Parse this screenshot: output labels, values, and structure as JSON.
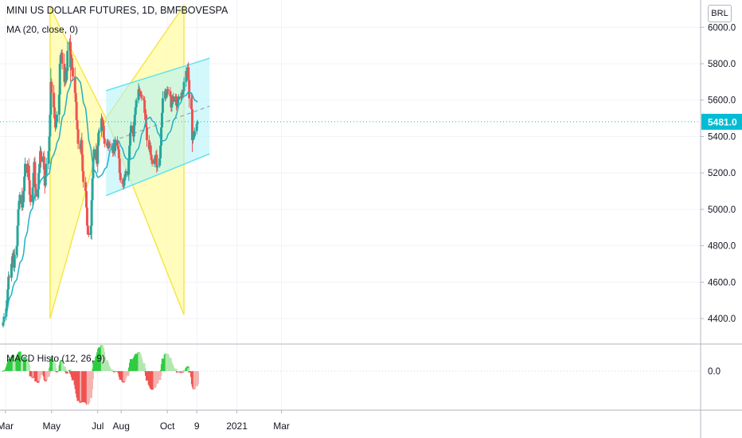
{
  "header": {
    "symbol": "MINI US DOLLAR FUTURES, 1D, BMFBOVESPA",
    "ma_label": "MA (20, close, 0)",
    "macd_label": "MACD Histo (12, 26, 9)",
    "currency": "BRL"
  },
  "colors": {
    "up": "#26a69a",
    "down": "#ef5350",
    "ma": "#21b0c4",
    "triangle_fill": "#fffbb0",
    "triangle_line": "#f5e33a",
    "channel_fill": "#aef3f7",
    "channel_line": "#5fe3ec",
    "hist_up_strong": "#2ecc40",
    "hist_up_weak": "#b2e8b0",
    "hist_down_strong": "#ef5350",
    "hist_down_weak": "#f4b3b1",
    "last_price_bg": "#00bcd4"
  },
  "chart_data": [
    {
      "type": "candlestick",
      "title": "MINI US DOLLAR FUTURES, 1D, BMFBOVESPA",
      "ylabel": "BRL",
      "ylim": [
        4260,
        6150
      ],
      "y_ticks": [
        4400,
        4600,
        4800,
        5000,
        5200,
        5400,
        5600,
        5800,
        6000
      ],
      "y_tick_labels": [
        "4400.0",
        "4600.0",
        "4800.0",
        "5000.0",
        "5200.0",
        "5400.0",
        "5600.0",
        "5800.0",
        "6000.0"
      ],
      "x_labels": [
        "Mar",
        "May",
        "Jul",
        "Aug",
        "Oct",
        "9",
        "2021",
        "Mar"
      ],
      "last_price": 5481.0,
      "last_price_label": "5481.0",
      "x_start": "2020-02-27",
      "close": [
        4380,
        4410,
        4455,
        4500,
        4560,
        4630,
        4625,
        4700,
        4730,
        4760,
        4680,
        4750,
        4800,
        4910,
        5000,
        5030,
        5080,
        5010,
        5040,
        5100,
        5180,
        5250,
        5200,
        5240,
        5160,
        5080,
        5040,
        5120,
        5200,
        5260,
        5140,
        5070,
        5110,
        5200,
        5250,
        5320,
        5260,
        5290,
        5220,
        5130,
        5180,
        5250,
        5320,
        5400,
        5520,
        5700,
        5640,
        5560,
        5500,
        5450,
        5480,
        5520,
        5630,
        5800,
        5830,
        5860,
        5800,
        5700,
        5760,
        5710,
        5760,
        5870,
        5920,
        5780,
        5830,
        5780,
        5730,
        5640,
        5590,
        5490,
        5440,
        5360,
        5330,
        5380,
        5300,
        5210,
        5150,
        5100,
        5010,
        4910,
        4870,
        4860,
        4910,
        5050,
        5170,
        5280,
        5330,
        5270,
        5250,
        5350,
        5420,
        5430,
        5500,
        5480,
        5460,
        5390,
        5360,
        5350,
        5370,
        5340,
        5360,
        5350,
        5340,
        5310,
        5360,
        5320,
        5380,
        5350,
        5330,
        5280,
        5200,
        5160,
        5140,
        5130,
        5170,
        5180,
        5210,
        5190,
        5280,
        5350,
        5420,
        5460,
        5400,
        5460,
        5520,
        5560,
        5600,
        5660,
        5650,
        5640,
        5630,
        5610,
        5600,
        5530,
        5520,
        5450,
        5380,
        5330,
        5350,
        5300,
        5270,
        5250,
        5280,
        5270,
        5300,
        5230,
        5240,
        5280,
        5350,
        5450,
        5530,
        5610,
        5650,
        5620,
        5630,
        5660,
        5650,
        5620,
        5560,
        5610,
        5620,
        5590,
        5620,
        5570,
        5580,
        5600,
        5620,
        5610,
        5640,
        5630,
        5650,
        5700,
        5760,
        5750,
        5780,
        5710,
        5610,
        5550,
        5380,
        5420,
        5400,
        5430,
        5470,
        5481
      ],
      "ma_period": 20,
      "triangles": [
        {
          "points": [
            [
              "2020-04-29",
              6110
            ],
            [
              "2020-04-29",
              4400
            ],
            [
              "2020-07-12",
              5500
            ]
          ]
        },
        {
          "points": [
            [
              "2020-10-23",
              6120
            ],
            [
              "2020-10-23",
              4420
            ],
            [
              "2020-07-12",
              5500
            ]
          ]
        }
      ],
      "channel": {
        "top": [
          [
            "2020-07-12",
            5652
          ],
          [
            "2020-11-26",
            5830
          ]
        ],
        "bottom": [
          [
            "2020-07-12",
            5075
          ],
          [
            "2020-11-26",
            5305
          ]
        ],
        "mid": [
          [
            "2020-07-12",
            5363
          ],
          [
            "2020-11-26",
            5567
          ]
        ]
      },
      "x_axis_ticks": [
        [
          "2020-03-01",
          "Mar"
        ],
        [
          "2020-05-01",
          "May"
        ],
        [
          "2020-07-01",
          "Jul"
        ],
        [
          "2020-08-01",
          "Aug"
        ],
        [
          "2020-10-01",
          "Oct"
        ],
        [
          "2020-11-09",
          "9"
        ],
        [
          "2021-01-01",
          "2021"
        ],
        [
          "2021-03-01",
          "Mar"
        ]
      ]
    },
    {
      "type": "histogram",
      "title": "MACD Histo (12, 26, 9)",
      "y_ticks": [
        0
      ],
      "y_tick_labels": [
        "0.0"
      ],
      "fast": 12,
      "slow": 26,
      "signal": 9
    }
  ]
}
